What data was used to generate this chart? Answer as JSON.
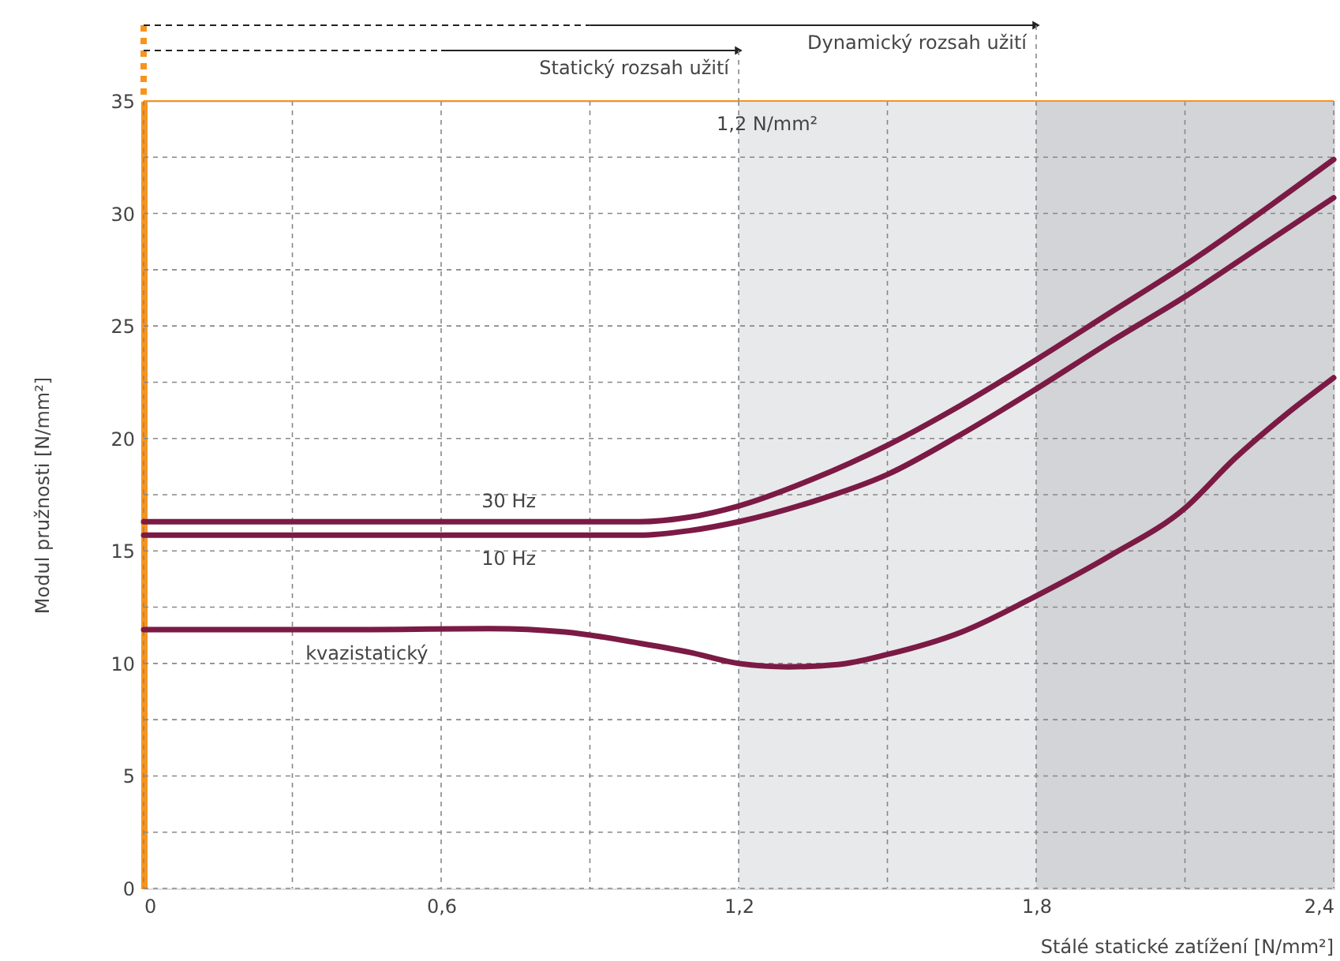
{
  "chart_data": {
    "type": "line",
    "xlabel": "Stálé statické zatížení [N/mm²]",
    "ylabel": "Modul pružnosti  [N/mm²]",
    "xlim": [
      0,
      2.4
    ],
    "ylim": [
      0,
      35
    ],
    "xticks": [
      0,
      {
        "value": 0.3,
        "label": null
      },
      {
        "value": 0.6,
        "label": "0,6"
      },
      {
        "value": 0.9,
        "label": null
      },
      {
        "value": 1.2,
        "label": "1,2"
      },
      {
        "value": 1.5,
        "label": null
      },
      {
        "value": 1.8,
        "label": "1,8"
      },
      {
        "value": 2.1,
        "label": null
      },
      {
        "value": 2.4,
        "label": "2,4"
      }
    ],
    "yticks": [
      0,
      {
        "value": 2.5,
        "label": null
      },
      5,
      {
        "value": 7.5,
        "label": null
      },
      10,
      {
        "value": 12.5,
        "label": null
      },
      15,
      {
        "value": 17.5,
        "label": null
      },
      20,
      {
        "value": 22.5,
        "label": null
      },
      25,
      {
        "value": 27.5,
        "label": null
      },
      30,
      {
        "value": 32.5,
        "label": null
      },
      35
    ],
    "grid": true,
    "line_style": "solid",
    "marker": "none",
    "series": [
      {
        "name": "30 Hz",
        "color": "#7b1a45",
        "x": [
          0,
          0.8,
          1.0,
          1.1,
          1.2,
          1.35,
          1.5,
          1.65,
          1.8,
          1.95,
          2.1,
          2.25,
          2.4
        ],
        "values": [
          16.3,
          16.3,
          16.3,
          16.5,
          17.0,
          18.2,
          19.7,
          21.5,
          23.5,
          25.6,
          27.7,
          30.0,
          32.4
        ]
      },
      {
        "name": "10 Hz",
        "color": "#7b1a45",
        "x": [
          0,
          0.8,
          1.0,
          1.1,
          1.2,
          1.35,
          1.5,
          1.65,
          1.8,
          1.95,
          2.1,
          2.25,
          2.4
        ],
        "values": [
          15.7,
          15.7,
          15.7,
          15.9,
          16.3,
          17.2,
          18.4,
          20.2,
          22.2,
          24.3,
          26.3,
          28.5,
          30.7
        ]
      },
      {
        "name": "kvazistatický",
        "color": "#7b1a45",
        "x": [
          0,
          0.45,
          0.7,
          0.85,
          1.0,
          1.1,
          1.2,
          1.3,
          1.4,
          1.5,
          1.65,
          1.8,
          1.95,
          2.1,
          2.2,
          2.3,
          2.4
        ],
        "values": [
          11.5,
          11.5,
          11.55,
          11.4,
          10.9,
          10.5,
          10.0,
          9.85,
          9.95,
          10.4,
          11.4,
          13.0,
          14.8,
          16.9,
          19.1,
          21.0,
          22.7
        ]
      }
    ],
    "bands": [
      {
        "axis": "x",
        "from": 1.2,
        "to": 1.8,
        "color": "#e8e9eb"
      },
      {
        "axis": "x",
        "from": 1.8,
        "to": 2.4,
        "color": "#d2d4d7"
      }
    ],
    "annotations": [
      {
        "text": "1,2 N/mm²",
        "x": 1.2,
        "y": 34
      },
      "Statický rozsah užití",
      "Dynamický rozsah užití"
    ]
  }
}
